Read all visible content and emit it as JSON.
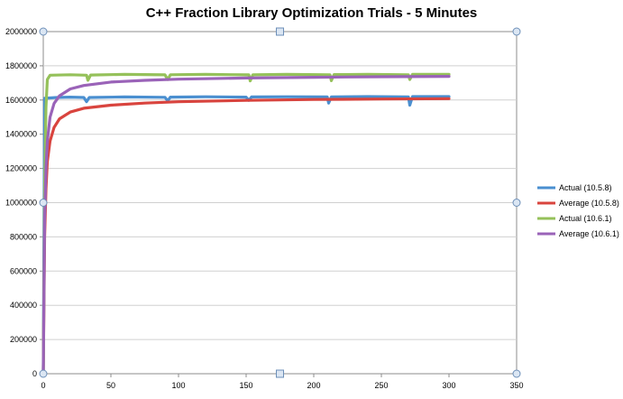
{
  "chart_data": {
    "type": "line",
    "title": "C++ Fraction Library Optimization Trials - 5 Minutes",
    "xlabel": "",
    "ylabel": "",
    "xlim": [
      0,
      350
    ],
    "ylim": [
      0,
      2000000
    ],
    "x_ticks": [
      "0",
      "50",
      "100",
      "150",
      "200",
      "250",
      "300",
      "350"
    ],
    "y_ticks": [
      "0",
      "200000",
      "400000",
      "600000",
      "800000",
      "1000000",
      "1200000",
      "1400000",
      "1600000",
      "1800000",
      "2000000"
    ],
    "grid": "horizontal",
    "legend_position": "right",
    "series": [
      {
        "name": "Actual (10.5.8)",
        "color": "#4a8fd0",
        "points": [
          [
            0,
            0
          ],
          [
            1,
            1610000
          ],
          [
            10,
            1615000
          ],
          [
            20,
            1617000
          ],
          [
            30,
            1615000
          ],
          [
            32,
            1590000
          ],
          [
            34,
            1615000
          ],
          [
            60,
            1618000
          ],
          [
            90,
            1616000
          ],
          [
            92,
            1595000
          ],
          [
            94,
            1617000
          ],
          [
            120,
            1619000
          ],
          [
            150,
            1617000
          ],
          [
            152,
            1598000
          ],
          [
            154,
            1618000
          ],
          [
            180,
            1619000
          ],
          [
            210,
            1618000
          ],
          [
            211,
            1582000
          ],
          [
            213,
            1618000
          ],
          [
            240,
            1620000
          ],
          [
            270,
            1618000
          ],
          [
            271,
            1570000
          ],
          [
            273,
            1620000
          ],
          [
            300,
            1620000
          ]
        ]
      },
      {
        "name": "Average (10.5.8)",
        "color": "#d9443e",
        "points": [
          [
            0,
            0
          ],
          [
            1,
            800000
          ],
          [
            2,
            1080000
          ],
          [
            3,
            1240000
          ],
          [
            5,
            1360000
          ],
          [
            8,
            1440000
          ],
          [
            12,
            1490000
          ],
          [
            20,
            1530000
          ],
          [
            30,
            1552000
          ],
          [
            50,
            1570000
          ],
          [
            75,
            1582000
          ],
          [
            100,
            1590000
          ],
          [
            150,
            1598000
          ],
          [
            200,
            1603000
          ],
          [
            250,
            1606000
          ],
          [
            300,
            1608000
          ]
        ]
      },
      {
        "name": "Actual (10.6.1)",
        "color": "#95c15a",
        "points": [
          [
            0,
            0
          ],
          [
            1,
            1100000
          ],
          [
            2,
            1560000
          ],
          [
            3,
            1720000
          ],
          [
            5,
            1745000
          ],
          [
            20,
            1748000
          ],
          [
            32,
            1745000
          ],
          [
            33,
            1715000
          ],
          [
            35,
            1746000
          ],
          [
            60,
            1750000
          ],
          [
            90,
            1747000
          ],
          [
            92,
            1720000
          ],
          [
            94,
            1748000
          ],
          [
            120,
            1750000
          ],
          [
            152,
            1747000
          ],
          [
            153,
            1712000
          ],
          [
            155,
            1748000
          ],
          [
            180,
            1750000
          ],
          [
            212,
            1748000
          ],
          [
            213,
            1713000
          ],
          [
            215,
            1749000
          ],
          [
            240,
            1750000
          ],
          [
            270,
            1748000
          ],
          [
            271,
            1720000
          ],
          [
            273,
            1750000
          ],
          [
            300,
            1750000
          ]
        ]
      },
      {
        "name": "Average (10.6.1)",
        "color": "#9a63b8",
        "points": [
          [
            0,
            0
          ],
          [
            1,
            900000
          ],
          [
            2,
            1200000
          ],
          [
            3,
            1360000
          ],
          [
            5,
            1500000
          ],
          [
            8,
            1580000
          ],
          [
            12,
            1625000
          ],
          [
            20,
            1665000
          ],
          [
            30,
            1685000
          ],
          [
            50,
            1705000
          ],
          [
            75,
            1715000
          ],
          [
            100,
            1722000
          ],
          [
            150,
            1729000
          ],
          [
            200,
            1733000
          ],
          [
            250,
            1736000
          ],
          [
            300,
            1738000
          ]
        ]
      }
    ]
  }
}
